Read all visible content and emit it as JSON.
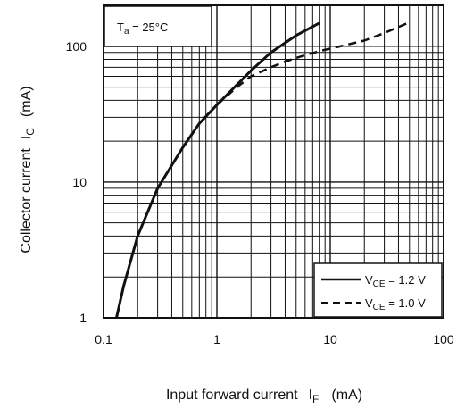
{
  "chart_data": {
    "type": "line",
    "xscale": "log",
    "yscale": "log",
    "xlim": [
      0.1,
      100
    ],
    "ylim": [
      1,
      200
    ],
    "grid": true,
    "legend_position": "bottom-right",
    "xlabel": {
      "main": "Input forward current",
      "sym": "I",
      "sub": "F",
      "unit": "(mA)"
    },
    "ylabel": {
      "main": "Collector current",
      "sym": "I",
      "sub": "C",
      "unit": "(mA)"
    },
    "x_ticks": [
      {
        "value": 0.1,
        "label": "0.1"
      },
      {
        "value": 1,
        "label": "1"
      },
      {
        "value": 10,
        "label": "10"
      },
      {
        "value": 100,
        "label": "100"
      }
    ],
    "y_ticks": [
      {
        "value": 1,
        "label": "1"
      },
      {
        "value": 10,
        "label": "10"
      },
      {
        "value": 100,
        "label": "100"
      }
    ],
    "annotation": {
      "sym": "T",
      "sub": "a",
      "rest": " = 25°C"
    },
    "series": [
      {
        "name": "VCE = 1.2 V",
        "legend": {
          "sym": "V",
          "sub": "CE",
          "rest": " = 1.2 V"
        },
        "style": "solid",
        "x": [
          0.13,
          0.15,
          0.2,
          0.3,
          0.5,
          0.7,
          1,
          1.5,
          2,
          3,
          5,
          8
        ],
        "y": [
          1,
          1.7,
          4,
          9,
          18,
          27,
          37,
          52,
          66,
          90,
          120,
          148
        ]
      },
      {
        "name": "VCE = 1.0 V",
        "legend": {
          "sym": "V",
          "sub": "CE",
          "rest": " = 1.0 V"
        },
        "style": "dashed",
        "x": [
          1,
          1.5,
          2,
          3,
          4,
          5,
          8,
          10,
          20,
          30,
          50
        ],
        "y": [
          37,
          50,
          60,
          70,
          77,
          82,
          92,
          96,
          110,
          125,
          150
        ]
      }
    ],
    "colors": {
      "line": "#111111",
      "grid": "#111111",
      "background": "#ffffff"
    }
  }
}
